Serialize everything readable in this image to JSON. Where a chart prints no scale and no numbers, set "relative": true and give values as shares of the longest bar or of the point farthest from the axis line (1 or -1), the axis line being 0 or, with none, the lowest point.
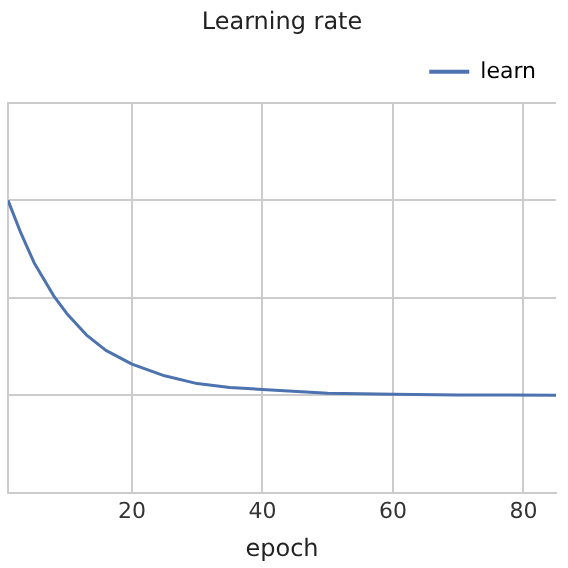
{
  "chart_data": {
    "type": "line",
    "title": "Learning rate",
    "xlabel": "epoch",
    "relative": true,
    "xlim": [
      1,
      85
    ],
    "xticks": [
      20,
      40,
      60,
      80
    ],
    "grid": true,
    "legend": "top right",
    "marker": "none",
    "line_style": "solid",
    "series": [
      {
        "name": "learn",
        "color": "#4c72b0",
        "x": [
          1,
          3,
          5,
          8,
          10,
          13,
          16,
          20,
          25,
          30,
          35,
          40,
          50,
          60,
          70,
          85
        ],
        "values": [
          1,
          0.83,
          0.68,
          0.51,
          0.42,
          0.31,
          0.23,
          0.16,
          0.1,
          0.06,
          0.04,
          0.03,
          0.01,
          0.005,
          0.002,
          0
        ]
      }
    ]
  }
}
